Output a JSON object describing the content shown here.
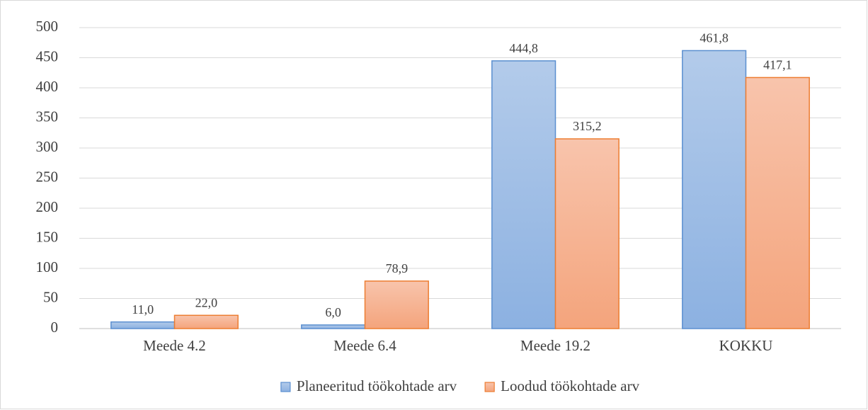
{
  "chart_data": {
    "type": "bar",
    "categories": [
      "Meede 4.2",
      "Meede 6.4",
      "Meede 19.2",
      "KOKKU"
    ],
    "series": [
      {
        "name": "Planeeritud töökohtade arv",
        "color": "#5b8fd0",
        "values": [
          11.0,
          6.0,
          444.8,
          461.8
        ],
        "value_labels": [
          "11,0",
          "6,0",
          "444,8",
          "461,8"
        ]
      },
      {
        "name": "Loodud töökohtade arv",
        "color": "#ed7d31",
        "values": [
          22.0,
          78.9,
          315.2,
          417.1
        ],
        "value_labels": [
          "22,0",
          "78,9",
          "315,2",
          "417,1"
        ]
      }
    ],
    "ylim": [
      0,
      500
    ],
    "yticks": [
      0,
      50,
      100,
      150,
      200,
      250,
      300,
      350,
      400,
      450,
      500
    ],
    "grid": true,
    "legend": "bottom"
  }
}
